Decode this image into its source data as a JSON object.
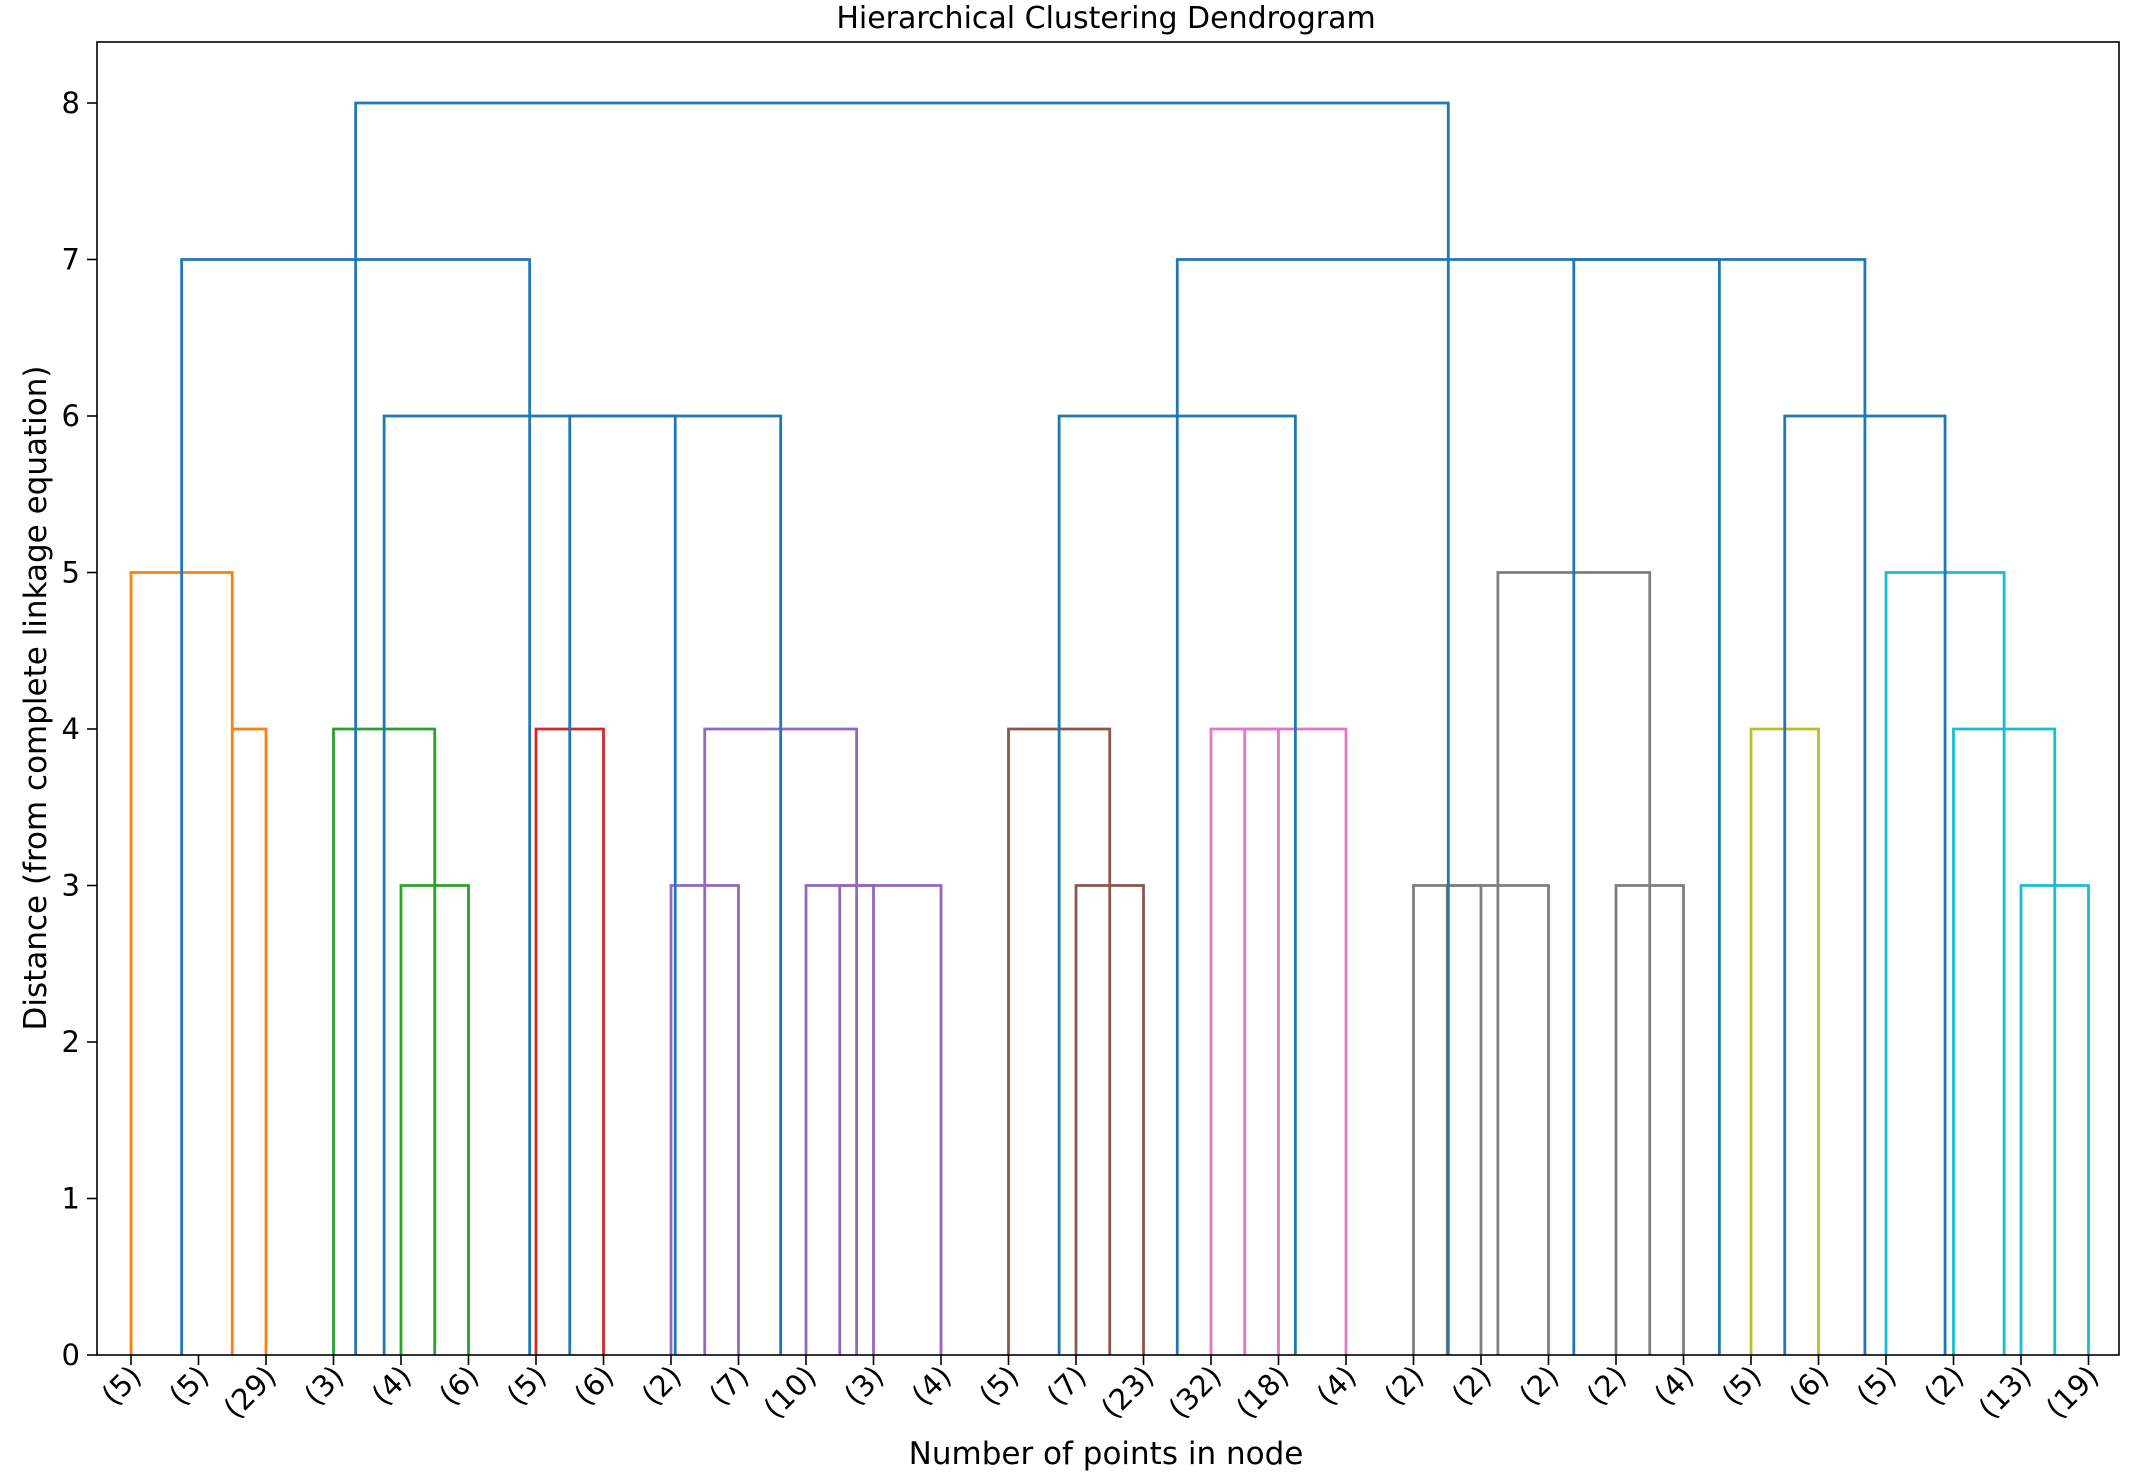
{
  "chart_data": {
    "type": "dendrogram",
    "title": "Hierarchical Clustering Dendrogram",
    "xlabel": "Number of points in node",
    "ylabel": "Distance (from complete linkage equation)",
    "ylim": [
      0,
      8.4
    ],
    "yticks": [
      0,
      1,
      2,
      3,
      4,
      5,
      6,
      7,
      8
    ],
    "leaves": [
      "(5)",
      "(5)",
      "(29)",
      "(3)",
      "(4)",
      "(6)",
      "(5)",
      "(6)",
      "(2)",
      "(7)",
      "(10)",
      "(3)",
      "(4)",
      "(5)",
      "(7)",
      "(23)",
      "(32)",
      "(18)",
      "(4)",
      "(2)",
      "(2)",
      "(2)",
      "(2)",
      "(4)",
      "(5)",
      "(6)",
      "(5)",
      "(2)",
      "(13)",
      "(19)"
    ],
    "merges": [
      {
        "x": [
          1.5,
          2.0
        ],
        "height": 4,
        "color": "#ff7f0e"
      },
      {
        "x": [
          0,
          1.5
        ],
        "height": 5,
        "color": "#ff7f0e"
      },
      {
        "x": [
          4.0,
          5.0
        ],
        "height": 3,
        "color": "#2ca02c"
      },
      {
        "x": [
          3.0,
          4.5
        ],
        "height": 4,
        "color": "#2ca02c"
      },
      {
        "x": [
          6.0,
          7.0
        ],
        "height": 4,
        "color": "#d62728"
      },
      {
        "x": [
          8.0,
          9.0
        ],
        "height": 3,
        "color": "#9467bd"
      },
      {
        "x": [
          10.0,
          11.0
        ],
        "height": 3,
        "color": "#9467bd"
      },
      {
        "x": [
          10.5,
          12.0
        ],
        "height": 3,
        "color": "#9467bd"
      },
      {
        "x": [
          8.5,
          10.75
        ],
        "height": 4,
        "color": "#9467bd"
      },
      {
        "x": [
          14.0,
          15.0
        ],
        "height": 3,
        "color": "#8c564b"
      },
      {
        "x": [
          13.0,
          14.5
        ],
        "height": 4,
        "color": "#8c564b"
      },
      {
        "x": [
          16.0,
          17.0
        ],
        "height": 4,
        "color": "#e377c2"
      },
      {
        "x": [
          16.5,
          18.0
        ],
        "height": 4,
        "color": "#e377c2"
      },
      {
        "x": [
          19.0,
          20.0
        ],
        "height": 3,
        "color": "#7f7f7f"
      },
      {
        "x": [
          19.5,
          21.0
        ],
        "height": 3,
        "color": "#7f7f7f"
      },
      {
        "x": [
          22.0,
          23.0
        ],
        "height": 3,
        "color": "#7f7f7f"
      },
      {
        "x": [
          20.25,
          22.5
        ],
        "height": 5,
        "color": "#7f7f7f"
      },
      {
        "x": [
          24.0,
          25.0
        ],
        "height": 4,
        "color": "#bcbd22"
      },
      {
        "x": [
          28.0,
          29.0
        ],
        "height": 3,
        "color": "#17becf"
      },
      {
        "x": [
          27.0,
          28.5
        ],
        "height": 4,
        "color": "#17becf"
      },
      {
        "x": [
          26.0,
          27.75
        ],
        "height": 5,
        "color": "#17becf"
      },
      {
        "x": [
          6.5,
          9.625
        ],
        "height": 6,
        "color": "#1f77b4"
      },
      {
        "x": [
          3.75,
          8.0625
        ],
        "height": 6,
        "color": "#1f77b4"
      },
      {
        "x": [
          0.75,
          5.90625
        ],
        "height": 7,
        "color": "#1f77b4"
      },
      {
        "x": [
          13.75,
          17.25
        ],
        "height": 6,
        "color": "#1f77b4"
      },
      {
        "x": [
          24.5,
          26.875
        ],
        "height": 6,
        "color": "#1f77b4"
      },
      {
        "x": [
          21.375,
          25.6875
        ],
        "height": 7,
        "color": "#1f77b4"
      },
      {
        "x": [
          15.5,
          23.53125
        ],
        "height": 7,
        "color": "#1f77b4"
      },
      {
        "x": [
          3.328125,
          19.515625
        ],
        "height": 8,
        "color": "#1f77b4"
      }
    ]
  }
}
